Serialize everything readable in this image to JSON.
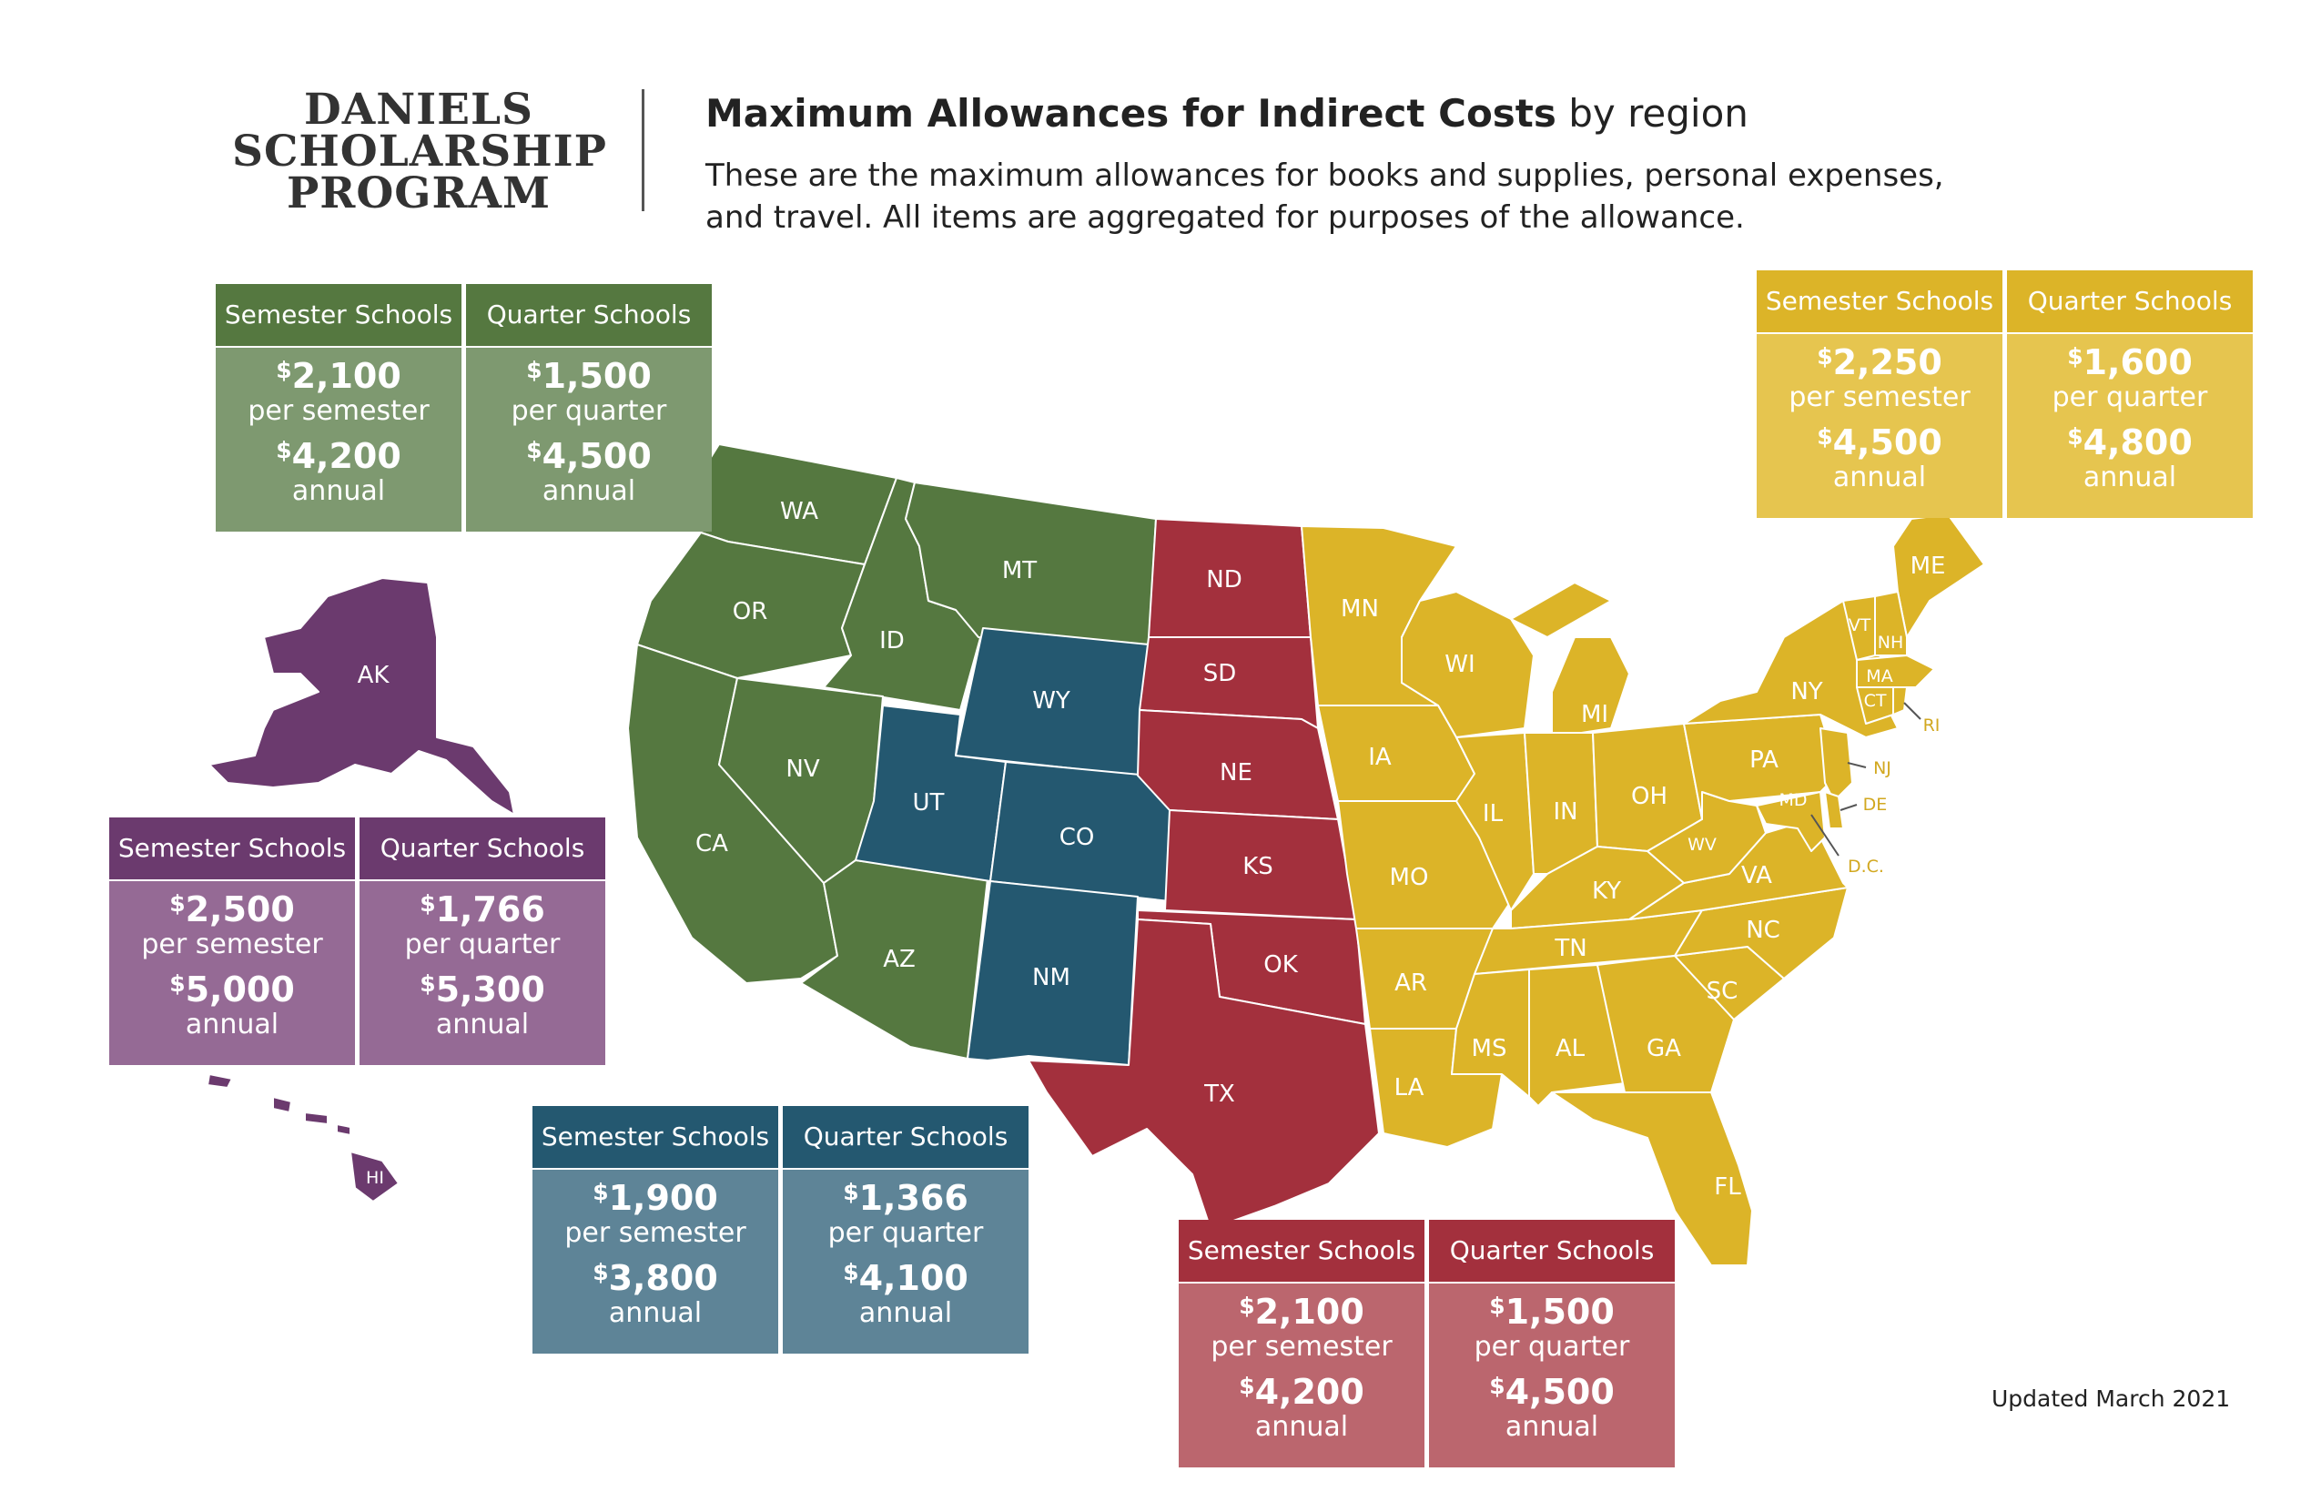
{
  "logo": {
    "line1": "DANIELS",
    "line2": "SCHOLARSHIP",
    "line3": "PROGRAM"
  },
  "header": {
    "title_main": "Maximum Allowances for Indirect Costs",
    "title_suffix": " by region",
    "subtitle": "These are the maximum allowances for books and supplies, personal expenses, and travel. All items are aggregated for purposes of the allowance."
  },
  "updated": "Updated March 2021",
  "colors": {
    "west": "#557840",
    "alaska_hawaii": "#6b3a6e",
    "mountain": "#245870",
    "central": "#a3303d",
    "east": "#dcb428"
  },
  "regions": {
    "west": {
      "col1": {
        "header": "Semester Schools",
        "currency": "$",
        "term_amount": "2,100",
        "term_label": "per semester",
        "annual_amount": "4,200",
        "annual_label": "annual"
      },
      "col2": {
        "header": "Quarter Schools",
        "currency": "$",
        "term_amount": "1,500",
        "term_label": "per quarter",
        "annual_amount": "4,500",
        "annual_label": "annual"
      }
    },
    "alaska_hawaii": {
      "col1": {
        "header": "Semester Schools",
        "currency": "$",
        "term_amount": "2,500",
        "term_label": "per semester",
        "annual_amount": "5,000",
        "annual_label": "annual"
      },
      "col2": {
        "header": "Quarter Schools",
        "currency": "$",
        "term_amount": "1,766",
        "term_label": "per quarter",
        "annual_amount": "5,300",
        "annual_label": "annual"
      }
    },
    "mountain": {
      "col1": {
        "header": "Semester Schools",
        "currency": "$",
        "term_amount": "1,900",
        "term_label": "per semester",
        "annual_amount": "3,800",
        "annual_label": "annual"
      },
      "col2": {
        "header": "Quarter Schools",
        "currency": "$",
        "term_amount": "1,366",
        "term_label": "per quarter",
        "annual_amount": "4,100",
        "annual_label": "annual"
      }
    },
    "central": {
      "col1": {
        "header": "Semester Schools",
        "currency": "$",
        "term_amount": "2,100",
        "term_label": "per semester",
        "annual_amount": "4,200",
        "annual_label": "annual"
      },
      "col2": {
        "header": "Quarter Schools",
        "currency": "$",
        "term_amount": "1,500",
        "term_label": "per quarter",
        "annual_amount": "4,500",
        "annual_label": "annual"
      }
    },
    "east": {
      "col1": {
        "header": "Semester Schools",
        "currency": "$",
        "term_amount": "2,250",
        "term_label": "per semester",
        "annual_amount": "4,500",
        "annual_label": "annual"
      },
      "col2": {
        "header": "Quarter Schools",
        "currency": "$",
        "term_amount": "1,600",
        "term_label": "per quarter",
        "annual_amount": "4,800",
        "annual_label": "annual"
      }
    }
  },
  "states": {
    "WA": "WA",
    "OR": "OR",
    "ID": "ID",
    "MT": "MT",
    "CA": "CA",
    "NV": "NV",
    "AZ": "AZ",
    "UT": "UT",
    "WY": "WY",
    "CO": "CO",
    "NM": "NM",
    "ND": "ND",
    "SD": "SD",
    "NE": "NE",
    "KS": "KS",
    "OK": "OK",
    "TX": "TX",
    "MN": "MN",
    "WI": "WI",
    "IA": "IA",
    "MO": "MO",
    "AR": "AR",
    "LA": "LA",
    "IL": "IL",
    "MI": "MI",
    "IN": "IN",
    "OH": "OH",
    "KY": "KY",
    "TN": "TN",
    "MS": "MS",
    "AL": "AL",
    "GA": "GA",
    "FL": "FL",
    "SC": "SC",
    "NC": "NC",
    "VA": "VA",
    "WV": "WV",
    "PA": "PA",
    "NY": "NY",
    "ME": "ME",
    "VT": "VT",
    "NH": "NH",
    "MA": "MA",
    "CT": "CT",
    "RI": "RI",
    "NJ": "NJ",
    "DE": "DE",
    "MD": "MD",
    "DC": "D.C.",
    "AK": "AK",
    "HI": "HI"
  }
}
